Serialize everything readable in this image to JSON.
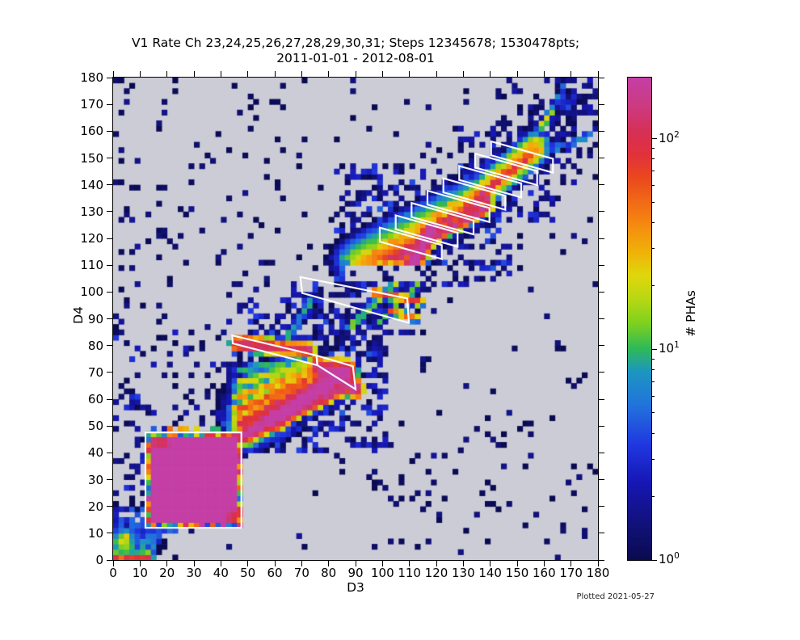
{
  "figure": {
    "title_line1": "V1 Rate Ch 23,24,25,26,27,28,29,30,31; Steps 12345678; 1530478pts;",
    "title_line2": "2011-01-01 - 2012-08-01",
    "footer": "Plotted 2021-05-27",
    "plot_background": "#ccccd6"
  },
  "chart_data": {
    "type": "heatmap",
    "title": "V1 Rate Ch 23,24,25,26,27,28,29,30,31; Steps 12345678; 1530478pts; 2011-01-01 - 2012-08-01",
    "xlabel": "D3",
    "ylabel": "D4",
    "xlim": [
      0,
      180
    ],
    "ylim": [
      0,
      180
    ],
    "x_ticks": [
      0,
      10,
      20,
      30,
      40,
      50,
      60,
      70,
      80,
      90,
      100,
      110,
      120,
      130,
      140,
      150,
      160,
      170,
      180
    ],
    "y_ticks": [
      0,
      10,
      20,
      30,
      40,
      50,
      60,
      70,
      80,
      90,
      100,
      110,
      120,
      130,
      140,
      150,
      160,
      170,
      180
    ],
    "bins": 90,
    "seed": 7,
    "colorbar": {
      "label": "# PHAs",
      "scale": "log",
      "vmin": 1,
      "vmax": 195,
      "major_ticks": [
        {
          "v": 1,
          "exp": "0"
        },
        {
          "v": 10,
          "exp": "1"
        },
        {
          "v": 100,
          "exp": "2"
        }
      ],
      "minor_ticks": [
        2,
        3,
        4,
        5,
        6,
        7,
        8,
        9,
        20,
        30,
        40,
        50,
        60,
        70,
        80,
        90
      ]
    },
    "colormap": [
      [
        0.0,
        "#0a0a50"
      ],
      [
        0.08,
        "#12127e"
      ],
      [
        0.16,
        "#1616b4"
      ],
      [
        0.24,
        "#2038e0"
      ],
      [
        0.32,
        "#2272dc"
      ],
      [
        0.39,
        "#1c96c0"
      ],
      [
        0.44,
        "#30ba55"
      ],
      [
        0.49,
        "#7ed020"
      ],
      [
        0.54,
        "#b6d813"
      ],
      [
        0.59,
        "#e0d60c"
      ],
      [
        0.64,
        "#f0b009"
      ],
      [
        0.69,
        "#f58d10"
      ],
      [
        0.74,
        "#f26b16"
      ],
      [
        0.79,
        "#ea491c"
      ],
      [
        0.84,
        "#e1313a"
      ],
      [
        0.89,
        "#d63058"
      ],
      [
        0.94,
        "#cc3a80"
      ],
      [
        1.0,
        "#c43ea6"
      ]
    ],
    "features": [
      {
        "t": "diag_scatter",
        "n": 520,
        "spread": 20,
        "vmin": 1,
        "vmax": 2.5
      },
      {
        "t": "scatter",
        "n": 240,
        "x0": 0,
        "x1": 180,
        "y0": 0,
        "y1": 180,
        "vmin": 1,
        "vmax": 2
      },
      {
        "t": "scatter",
        "n": 80,
        "x0": 140,
        "x1": 180,
        "y0": 140,
        "y1": 180,
        "vmin": 1,
        "vmax": 3
      },
      {
        "t": "scatter",
        "n": 45,
        "x0": 0,
        "x1": 12,
        "y0": 10,
        "y1": 85,
        "vmin": 1,
        "vmax": 4
      },
      {
        "t": "scatter",
        "n": 60,
        "x0": 12,
        "x1": 50,
        "y0": 48,
        "y1": 95,
        "vmin": 1,
        "vmax": 3
      },
      {
        "t": "scatter",
        "n": 110,
        "x0": 50,
        "x1": 100,
        "y0": 60,
        "y1": 105,
        "vmin": 1,
        "vmax": 4
      },
      {
        "t": "scatter",
        "n": 330,
        "x0": 42,
        "x1": 102,
        "y0": 40,
        "y1": 95,
        "vmin": 1,
        "vmax": 5
      },
      {
        "t": "scatter",
        "n": 280,
        "x0": 82,
        "x1": 148,
        "y0": 103,
        "y1": 148,
        "vmin": 1,
        "vmax": 5
      },
      {
        "t": "scatter",
        "n": 110,
        "x0": 125,
        "x1": 165,
        "y0": 125,
        "y1": 162,
        "vmin": 1,
        "vmax": 4
      },
      {
        "t": "scatter",
        "n": 120,
        "x0": 0,
        "x1": 18,
        "y0": 0,
        "y1": 20,
        "vmin": 2,
        "vmax": 8
      },
      {
        "t": "blob",
        "cx": 4.5,
        "cy": 7.5,
        "sx": 2.2,
        "sy": 2.2,
        "v": 28
      },
      {
        "t": "blob",
        "cx": 2,
        "cy": 3,
        "sx": 1.8,
        "sy": 1.8,
        "v": 12
      },
      {
        "t": "blob",
        "cx": 12,
        "cy": 6,
        "sx": 3,
        "sy": 2.5,
        "v": 7
      },
      {
        "t": "blob",
        "cx": 8,
        "cy": 60,
        "sx": 1,
        "sy": 1.5,
        "v": 6
      },
      {
        "t": "streak",
        "x1": 0,
        "y1": 0.8,
        "x2": 13,
        "y2": 0.8,
        "w": 1.1,
        "v": 70
      },
      {
        "t": "line_scatter",
        "n": 60,
        "x1": 2,
        "y1": 2,
        "x2": 24,
        "y2": 14,
        "spread": 2.5,
        "vmin": 2,
        "vmax": 6
      },
      {
        "t": "rect",
        "x0": 13,
        "x1": 47.4,
        "y0": 13,
        "y1": 47.4,
        "v": 250
      },
      {
        "t": "stamp_blob",
        "cx": 17.5,
        "cy": 44,
        "sx": 3.4,
        "sy": 2.5,
        "v": 80,
        "x0": 13,
        "x1": 47.4,
        "y0": 13,
        "y1": 47.4
      },
      {
        "t": "stamp_blob",
        "cx": 44.8,
        "cy": 16,
        "sx": 2.6,
        "sy": 3.4,
        "v": 80,
        "x0": 13,
        "x1": 47.4,
        "y0": 13,
        "y1": 47.4
      },
      {
        "t": "rim",
        "x0": 13,
        "x1": 47.4,
        "y0": 13,
        "y1": 47.4,
        "vmin": 3,
        "vmax": 140,
        "p": 0.92
      },
      {
        "t": "scatter",
        "n": 25,
        "x0": 13,
        "x1": 48,
        "y0": 47.5,
        "y1": 49.5,
        "vmin": 2,
        "vmax": 60
      },
      {
        "t": "streak",
        "x1": 47,
        "y1": 45.5,
        "x2": 89,
        "y2": 66,
        "w": 1.4,
        "v": 130
      },
      {
        "t": "streak",
        "x1": 49,
        "y1": 47,
        "x2": 87,
        "y2": 70.5,
        "w": 1.6,
        "v": 210
      },
      {
        "t": "streak",
        "x1": 58,
        "y1": 52,
        "x2": 86,
        "y2": 70,
        "w": 2.2,
        "v": 230
      },
      {
        "t": "streak",
        "x1": 47,
        "y1": 51,
        "x2": 84,
        "y2": 70.5,
        "w": 1.3,
        "v": 95
      },
      {
        "t": "streak",
        "x1": 46.5,
        "y1": 56,
        "x2": 81,
        "y2": 71,
        "w": 1.3,
        "v": 55
      },
      {
        "t": "streak",
        "x1": 46.5,
        "y1": 61,
        "x2": 77,
        "y2": 72,
        "w": 1.2,
        "v": 32
      },
      {
        "t": "streak",
        "x1": 46.5,
        "y1": 66,
        "x2": 73,
        "y2": 73.5,
        "w": 1.2,
        "v": 18
      },
      {
        "t": "streak",
        "x1": 46.5,
        "y1": 71,
        "x2": 69,
        "y2": 74.5,
        "w": 1,
        "v": 10
      },
      {
        "t": "blob",
        "cx": 56,
        "cy": 57,
        "sx": 7,
        "sy": 6,
        "v": 20
      },
      {
        "t": "blob",
        "cx": 50,
        "cy": 50,
        "sx": 4,
        "sy": 4,
        "v": 40
      },
      {
        "t": "streak",
        "x1": 46,
        "y1": 80.5,
        "x2": 73,
        "y2": 78.5,
        "w": 1.3,
        "v": 120
      },
      {
        "t": "streak",
        "x1": 46,
        "y1": 82.5,
        "x2": 58,
        "y2": 81.5,
        "w": 1,
        "v": 60
      },
      {
        "t": "blob",
        "cx": 81,
        "cy": 69.5,
        "sx": 3.4,
        "sy": 2.6,
        "v": 210
      },
      {
        "t": "streak",
        "x1": 76,
        "y1": 72.5,
        "x2": 90,
        "y2": 64,
        "w": 1.7,
        "v": 170
      },
      {
        "t": "blob",
        "cx": 86,
        "cy": 66,
        "sx": 2.2,
        "sy": 2.2,
        "v": 95
      },
      {
        "t": "line_scatter",
        "n": 80,
        "x1": 48,
        "y1": 44,
        "x2": 90,
        "y2": 62,
        "spread": 2,
        "vmin": 1,
        "vmax": 5
      },
      {
        "t": "line_scatter",
        "n": 50,
        "x1": 48,
        "y1": 84,
        "x2": 75,
        "y2": 79,
        "spread": 2.5,
        "vmin": 1,
        "vmax": 5
      },
      {
        "t": "streak",
        "x1": 61,
        "y1": 77,
        "x2": 73,
        "y2": 96,
        "w": 1,
        "v": 9
      },
      {
        "t": "line_scatter",
        "n": 80,
        "x1": 60,
        "y1": 76,
        "x2": 76,
        "y2": 100,
        "spread": 2.5,
        "vmin": 1,
        "vmax": 5
      },
      {
        "t": "streak",
        "x1": 88,
        "y1": 87,
        "x2": 110,
        "y2": 108,
        "w": 0.9,
        "v": 13
      },
      {
        "t": "streak",
        "x1": 98,
        "y1": 88,
        "x2": 114,
        "y2": 104,
        "w": 0.8,
        "v": 9
      },
      {
        "t": "streak",
        "x1": 97,
        "y1": 100,
        "x2": 114,
        "y2": 96.5,
        "w": 0.9,
        "v": 65
      },
      {
        "t": "streak",
        "x1": 103,
        "y1": 93,
        "x2": 112,
        "y2": 90.5,
        "w": 0.8,
        "v": 45
      },
      {
        "t": "scatter",
        "n": 60,
        "x0": 86,
        "x1": 116,
        "y0": 84,
        "y1": 110,
        "vmin": 1,
        "vmax": 5
      },
      {
        "t": "streak",
        "x1": 104,
        "y1": 103,
        "x2": 108,
        "y2": 107,
        "w": 0.8,
        "v": 20
      },
      {
        "t": "streak",
        "x1": 90,
        "y1": 111.5,
        "x2": 133,
        "y2": 134,
        "w": 4.5,
        "v": 12
      },
      {
        "t": "streak",
        "x1": 92,
        "y1": 111.5,
        "x2": 134,
        "y2": 132,
        "w": 3,
        "v": 22
      },
      {
        "t": "streak",
        "x1": 96,
        "y1": 111.5,
        "x2": 134,
        "y2": 130.5,
        "w": 2,
        "v": 38
      },
      {
        "t": "streak",
        "x1": 101,
        "y1": 112,
        "x2": 137,
        "y2": 131,
        "w": 1.4,
        "v": 85
      },
      {
        "t": "streak",
        "x1": 105,
        "y1": 112.5,
        "x2": 139,
        "y2": 132,
        "w": 1.3,
        "v": 125
      },
      {
        "t": "streak",
        "x1": 110.5,
        "y1": 109,
        "x2": 118.5,
        "y2": 124,
        "w": 1.6,
        "v": 225
      },
      {
        "t": "streak",
        "x1": 118.5,
        "y1": 124,
        "x2": 139,
        "y2": 135,
        "w": 1.2,
        "v": 110
      },
      {
        "t": "streak",
        "x1": 93,
        "y1": 112,
        "x2": 130,
        "y2": 135,
        "w": 1.2,
        "v": 30
      },
      {
        "t": "clear",
        "x0": 87,
        "x1": 129,
        "y0": 104.5,
        "y1": 109.7
      },
      {
        "t": "scatter",
        "n": 18,
        "x0": 88,
        "x1": 128,
        "y0": 103,
        "y1": 110,
        "vmin": 1,
        "vmax": 2
      },
      {
        "t": "streak",
        "x1": 127,
        "y1": 129,
        "x2": 157,
        "y2": 154,
        "w": 2.8,
        "v": 28
      },
      {
        "t": "streak",
        "x1": 131,
        "y1": 132,
        "x2": 155,
        "y2": 151,
        "w": 1.1,
        "v": 75
      },
      {
        "t": "streak",
        "x1": 136,
        "y1": 136,
        "x2": 146,
        "y2": 144,
        "w": 1,
        "v": 110
      },
      {
        "t": "scatter",
        "n": 70,
        "x0": 127,
        "x1": 162,
        "y0": 127,
        "y1": 160,
        "vmin": 1,
        "vmax": 4
      },
      {
        "t": "line_scatter",
        "n": 55,
        "x1": 149,
        "y1": 147,
        "x2": 179,
        "y2": 159.5,
        "spread": 0.7,
        "vmin": 3,
        "vmax": 10
      },
      {
        "t": "streak",
        "x1": 152,
        "y1": 148,
        "x2": 158,
        "y2": 150.5,
        "w": 0.8,
        "v": 28
      },
      {
        "t": "line_scatter",
        "n": 50,
        "x1": 150,
        "y1": 150,
        "x2": 170,
        "y2": 179,
        "spread": 0.7,
        "vmin": 3,
        "vmax": 9
      },
      {
        "t": "streak",
        "x1": 159,
        "y1": 162,
        "x2": 163,
        "y2": 168,
        "w": 0.8,
        "v": 18
      },
      {
        "t": "blob",
        "cx": 168,
        "cy": 170,
        "sx": 2.5,
        "sy": 2.5,
        "v": 4
      },
      {
        "t": "scatter",
        "n": 40,
        "x0": 155,
        "x1": 180,
        "y0": 150,
        "y1": 180,
        "vmin": 1,
        "vmax": 3
      },
      {
        "t": "scatter",
        "n": 40,
        "x0": 95,
        "x1": 180,
        "y0": 0,
        "y1": 55,
        "vmin": 1,
        "vmax": 2
      },
      {
        "t": "scatter",
        "n": 50,
        "x0": 10,
        "x1": 90,
        "y0": 100,
        "y1": 180,
        "vmin": 1,
        "vmax": 2
      },
      {
        "t": "scatter",
        "n": 25,
        "x0": 0,
        "x1": 10,
        "y0": 85,
        "y1": 180,
        "vmin": 1,
        "vmax": 2
      }
    ],
    "overlays": {
      "color": "#ffffff",
      "polygons": [
        {
          "name": "pha-box-square",
          "pts": [
            [
              12,
              12
            ],
            [
              47.6,
              12
            ],
            [
              47.6,
              47.6
            ],
            [
              12,
              47.6
            ]
          ]
        },
        {
          "name": "pha-box-mid-left",
          "pts": [
            [
              44.2,
              83.8
            ],
            [
              75.5,
              76.3
            ],
            [
              75.8,
              72.7
            ],
            [
              44.4,
              80.8
            ]
          ]
        },
        {
          "name": "pha-box-mid-right",
          "pts": [
            [
              75.5,
              76.3
            ],
            [
              89,
              72.3
            ],
            [
              90,
              63.7
            ],
            [
              75.8,
              72.7
            ]
          ]
        },
        {
          "name": "pha-box-band",
          "pts": [
            [
              69.5,
              105.6
            ],
            [
              109.2,
              97.6
            ],
            [
              109.8,
              88.5
            ],
            [
              70.2,
              99.6
            ]
          ]
        },
        {
          "name": "pha-box-stair-1",
          "pts": [
            [
              99,
              124
            ],
            [
              122,
              117.5
            ],
            [
              122,
              112.3
            ],
            [
              99,
              118.8
            ]
          ]
        },
        {
          "name": "pha-box-stair-2",
          "pts": [
            [
              104.9,
              128.6
            ],
            [
              127.9,
              122.1
            ],
            [
              127.9,
              116.9
            ],
            [
              104.9,
              123.4
            ]
          ]
        },
        {
          "name": "pha-box-stair-3",
          "pts": [
            [
              110.8,
              133.2
            ],
            [
              133.8,
              126.7
            ],
            [
              133.8,
              121.5
            ],
            [
              110.8,
              128
            ]
          ]
        },
        {
          "name": "pha-box-stair-4",
          "pts": [
            [
              116.7,
              137.8
            ],
            [
              139.7,
              131.3
            ],
            [
              139.7,
              126.1
            ],
            [
              116.7,
              132.6
            ]
          ]
        },
        {
          "name": "pha-box-stair-5",
          "pts": [
            [
              122.6,
              142.4
            ],
            [
              145.6,
              135.9
            ],
            [
              145.6,
              130.7
            ],
            [
              122.6,
              137.2
            ]
          ]
        },
        {
          "name": "pha-box-stair-6",
          "pts": [
            [
              128.5,
              147
            ],
            [
              151.5,
              140.5
            ],
            [
              151.5,
              135.3
            ],
            [
              128.5,
              141.8
            ]
          ]
        },
        {
          "name": "pha-box-stair-7",
          "pts": [
            [
              134.4,
              151.6
            ],
            [
              157.4,
              145.1
            ],
            [
              157.4,
              139.9
            ],
            [
              134.4,
              146.4
            ]
          ]
        },
        {
          "name": "pha-box-stair-8",
          "pts": [
            [
              140.3,
              156.2
            ],
            [
              163.3,
              149.7
            ],
            [
              163.3,
              144.5
            ],
            [
              140.3,
              151
            ]
          ]
        }
      ]
    }
  }
}
